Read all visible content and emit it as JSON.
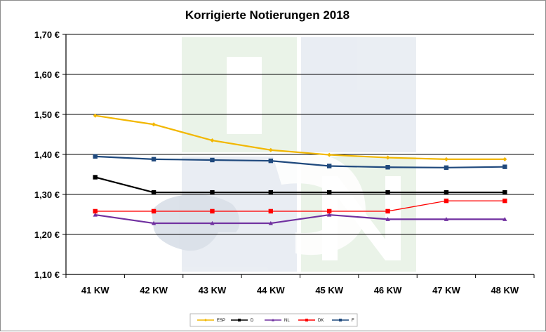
{
  "chart_data": {
    "type": "line",
    "title": "Korrigierte Notierungen 2018",
    "xlabel": "",
    "ylabel": "",
    "categories": [
      "41 KW",
      "42 KW",
      "43 KW",
      "44 KW",
      "45 KW",
      "46 KW",
      "47 KW",
      "48 KW"
    ],
    "ylim": [
      1.1,
      1.7
    ],
    "yticks": [
      "1,10 €",
      "1,20 €",
      "1,30 €",
      "1,40 €",
      "1,50 €",
      "1,60 €",
      "1,70 €"
    ],
    "grid": true,
    "legend_position": "bottom",
    "series": [
      {
        "name": "ESP",
        "color": "#F2B700",
        "marker": "diamond",
        "values": [
          1.497,
          1.475,
          1.435,
          1.411,
          1.399,
          1.392,
          1.388,
          1.388
        ]
      },
      {
        "name": "D",
        "color": "#000000",
        "marker": "square",
        "values": [
          1.343,
          1.305,
          1.305,
          1.305,
          1.305,
          1.305,
          1.305,
          1.305
        ]
      },
      {
        "name": "NL",
        "color": "#7030A0",
        "marker": "triangle",
        "values": [
          1.249,
          1.228,
          1.228,
          1.228,
          1.249,
          1.238,
          1.238,
          1.238
        ]
      },
      {
        "name": "DK",
        "color": "#FF0000",
        "marker": "square",
        "values": [
          1.258,
          1.258,
          1.258,
          1.258,
          1.258,
          1.258,
          1.284,
          1.284
        ]
      },
      {
        "name": "F",
        "color": "#1F497D",
        "marker": "square",
        "values": [
          1.395,
          1.388,
          1.386,
          1.384,
          1.371,
          1.368,
          1.367,
          1.369
        ]
      }
    ]
  }
}
